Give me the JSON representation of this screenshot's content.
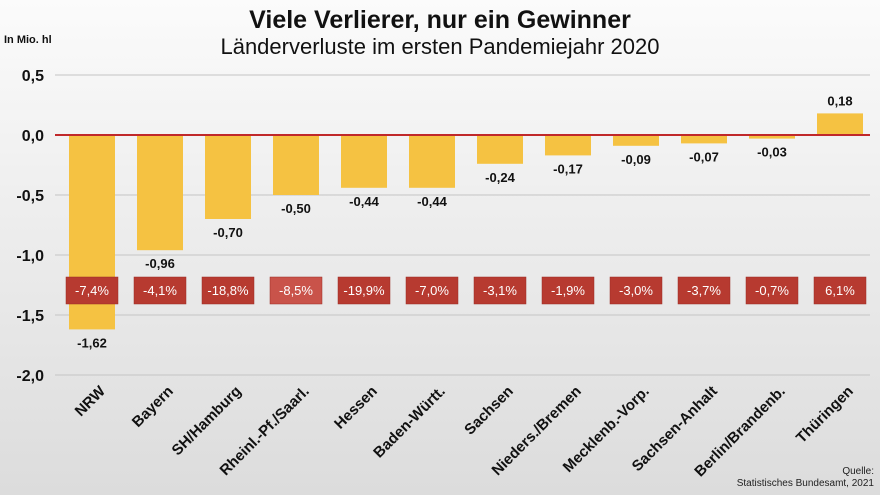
{
  "chart_data": {
    "type": "bar",
    "title": "Viele Verlierer, nur ein Gewinner",
    "subtitle": "Länderverluste im ersten Pandemiejahr 2020",
    "ylabel": "In Mio. hl",
    "ylim": [
      -2.0,
      0.5
    ],
    "yticks": [
      0.5,
      0.0,
      -0.5,
      -1.0,
      -1.5,
      -2.0
    ],
    "ytick_labels": [
      "0,5",
      "0,0",
      "-0,5",
      "-1,0",
      "-1,5",
      "-2,0"
    ],
    "grid": true,
    "categories": [
      "NRW",
      "Bayern",
      "SH/Hamburg",
      "Rheinl.-Pf./Saarl.",
      "Hessen",
      "Baden-Württ.",
      "Sachsen",
      "Nieders./Bremen",
      "Mecklenb.-Vorp.",
      "Sachsen-Anhalt",
      "Berlin/Brandenb.",
      "Thüringen"
    ],
    "values": [
      -1.62,
      -0.96,
      -0.7,
      -0.5,
      -0.44,
      -0.44,
      -0.24,
      -0.17,
      -0.09,
      -0.07,
      -0.03,
      0.18
    ],
    "value_labels": [
      "-1,62",
      "-0,96",
      "-0,70",
      "-0,50",
      "-0,44",
      "-0,44",
      "-0,24",
      "-0,17",
      "-0,09",
      "-0,07",
      "-0,03",
      "0,18"
    ],
    "percent_labels": [
      "-7,4%",
      "-4,1%",
      "-18,8%",
      "-8,5%",
      "-19,9%",
      "-7,0%",
      "-3,1%",
      "-1,9%",
      "-3,0%",
      "-3,7%",
      "-0,7%",
      "6,1%"
    ],
    "source": [
      "Quelle:",
      "Statistisches Bundesamt, 2021"
    ],
    "colors": {
      "bar": "#f5c242",
      "zero_line": "#c0282a",
      "badge": "#b73a30",
      "badge_light": "#c9534a",
      "grid": "#c4c4c4"
    }
  }
}
